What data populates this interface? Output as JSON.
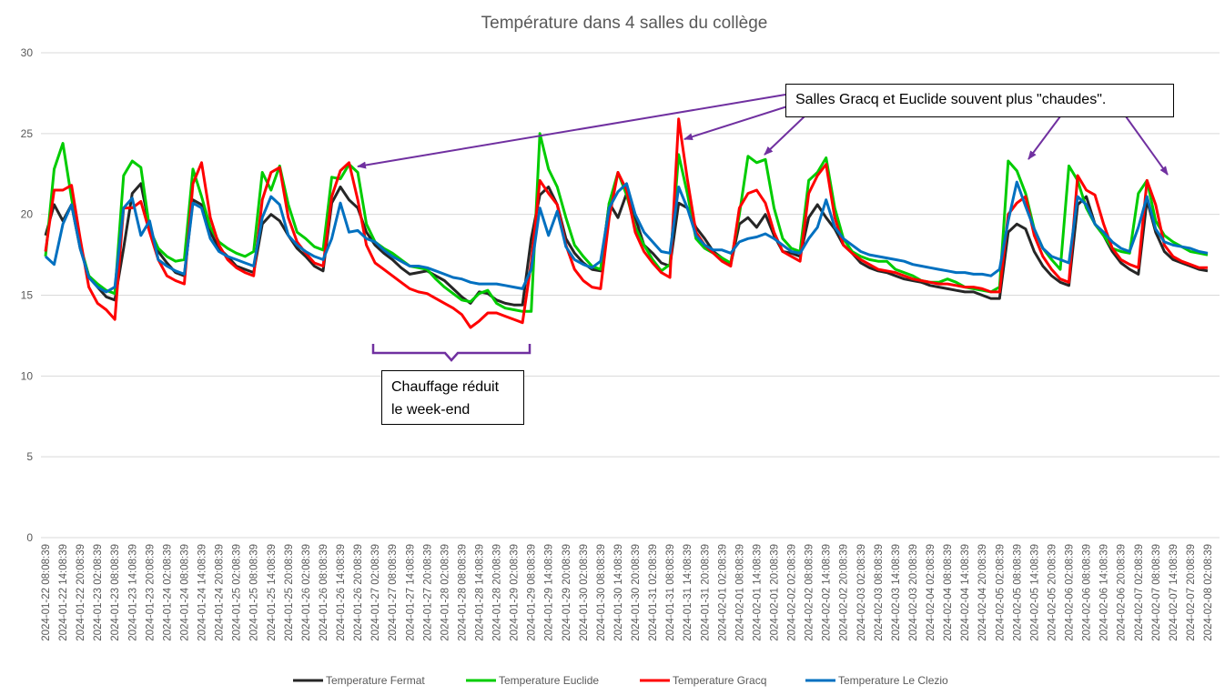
{
  "chart_data": {
    "type": "line",
    "title": "Température dans 4 salles du collège",
    "xlabel": "",
    "ylabel": "",
    "ylim": [
      0,
      30
    ],
    "yticks": [
      "0",
      "5",
      "10",
      "15",
      "20",
      "25",
      "30"
    ],
    "grid": true,
    "legend_position": "bottom",
    "x_start": "2024-01-22 08:08:39",
    "x_step_hours": 3,
    "xtick_labels": [
      "2024-01-22 08:08:39",
      "2024-01-22 14:08:39",
      "2024-01-22 20:08:39",
      "2024-01-23 02:08:39",
      "2024-01-23 08:08:39",
      "2024-01-23 14:08:39",
      "2024-01-23 20:08:39",
      "2024-01-24 02:08:39",
      "2024-01-24 08:08:39",
      "2024-01-24 14:08:39",
      "2024-01-24 20:08:39",
      "2024-01-25 02:08:39",
      "2024-01-25 08:08:39",
      "2024-01-25 14:08:39",
      "2024-01-25 20:08:39",
      "2024-01-26 02:08:39",
      "2024-01-26 08:08:39",
      "2024-01-26 14:08:39",
      "2024-01-26 20:08:39",
      "2024-01-27 02:08:39",
      "2024-01-27 08:08:39",
      "2024-01-27 14:08:39",
      "2024-01-27 20:08:39",
      "2024-01-28 02:08:39",
      "2024-01-28 08:08:39",
      "2024-01-28 14:08:39",
      "2024-01-28 20:08:39",
      "2024-01-29 02:08:39",
      "2024-01-29 08:08:39",
      "2024-01-29 14:08:39",
      "2024-01-29 20:08:39",
      "2024-01-30 02:08:39",
      "2024-01-30 08:08:39",
      "2024-01-30 14:08:39",
      "2024-01-30 20:08:39",
      "2024-01-31 02:08:39",
      "2024-01-31 08:08:39",
      "2024-01-31 14:08:39",
      "2024-01-31 20:08:39",
      "2024-02-01 02:08:39",
      "2024-02-01 08:08:39",
      "2024-02-01 14:08:39",
      "2024-02-01 20:08:39",
      "2024-02-02 02:08:39",
      "2024-02-02 08:08:39",
      "2024-02-02 14:08:39",
      "2024-02-02 20:08:39",
      "2024-02-03 02:08:39",
      "2024-02-03 08:08:39",
      "2024-02-03 14:08:39",
      "2024-02-03 20:08:39",
      "2024-02-04 02:08:39",
      "2024-02-04 08:08:39",
      "2024-02-04 14:08:39",
      "2024-02-04 20:08:39",
      "2024-02-05 02:08:39",
      "2024-02-05 08:08:39",
      "2024-02-05 14:08:39",
      "2024-02-05 20:08:39",
      "2024-02-06 02:08:39",
      "2024-02-06 08:08:39",
      "2024-02-06 14:08:39",
      "2024-02-06 20:08:39",
      "2024-02-07 02:08:39",
      "2024-02-07 08:08:39",
      "2024-02-07 14:08:39",
      "2024-02-07 20:08:39",
      "2024-02-08 02:08:39"
    ],
    "series": [
      {
        "name": "Temperature Fermat",
        "color": "#262626",
        "values": [
          18.7,
          20.6,
          19.6,
          20.6,
          17.9,
          16.2,
          15.5,
          14.9,
          14.7,
          17.9,
          21.3,
          21.9,
          19.2,
          17.7,
          17.0,
          16.4,
          16.2,
          20.9,
          20.6,
          18.9,
          17.9,
          17.4,
          16.8,
          16.6,
          16.4,
          19.4,
          20.0,
          19.6,
          18.7,
          17.9,
          17.4,
          16.8,
          16.5,
          20.7,
          21.7,
          20.9,
          20.4,
          18.9,
          18.1,
          17.6,
          17.2,
          16.7,
          16.3,
          16.4,
          16.5,
          16.2,
          15.9,
          15.4,
          14.9,
          14.5,
          15.2,
          15.1,
          14.7,
          14.5,
          14.4,
          14.4,
          18.5,
          21.2,
          21.7,
          20.6,
          18.5,
          17.6,
          17.0,
          16.6,
          16.5,
          20.7,
          19.8,
          21.3,
          19.8,
          18.1,
          17.6,
          17.0,
          16.8,
          20.7,
          20.4,
          19.2,
          18.5,
          17.7,
          17.3,
          16.9,
          19.4,
          19.8,
          19.2,
          20.0,
          18.7,
          17.7,
          17.6,
          17.4,
          19.8,
          20.6,
          19.8,
          19.1,
          18.1,
          17.6,
          17.0,
          16.7,
          16.5,
          16.4,
          16.2,
          16.0,
          15.9,
          15.8,
          15.6,
          15.5,
          15.4,
          15.3,
          15.2,
          15.2,
          15.0,
          14.8,
          14.8,
          18.9,
          19.4,
          19.1,
          17.7,
          16.8,
          16.2,
          15.8,
          15.6,
          20.6,
          21.1,
          19.4,
          18.7,
          17.7,
          17.0,
          16.6,
          16.3,
          20.9,
          18.9,
          17.7,
          17.2,
          17.0,
          16.8,
          16.6,
          16.5
        ]
      },
      {
        "name": "Temperature Euclide",
        "color": "#00cc00",
        "values": [
          17.4,
          22.8,
          24.4,
          21.0,
          18.1,
          16.2,
          15.7,
          15.3,
          15.1,
          22.4,
          23.3,
          22.9,
          19.1,
          17.9,
          17.4,
          17.1,
          17.2,
          22.8,
          21.1,
          19.2,
          18.3,
          17.9,
          17.6,
          17.4,
          17.7,
          22.6,
          21.5,
          23.0,
          20.6,
          18.9,
          18.5,
          18.0,
          17.8,
          22.3,
          22.2,
          23.1,
          22.6,
          19.4,
          18.3,
          17.9,
          17.6,
          17.2,
          16.8,
          16.7,
          16.6,
          16.0,
          15.5,
          15.1,
          14.7,
          14.6,
          15.1,
          15.3,
          14.5,
          14.2,
          14.1,
          14.0,
          14.0,
          25.0,
          22.8,
          21.7,
          19.8,
          18.1,
          17.4,
          16.8,
          16.6,
          20.7,
          22.6,
          21.2,
          19.2,
          18.1,
          17.2,
          16.5,
          16.9,
          23.7,
          21.3,
          18.5,
          17.9,
          17.6,
          17.3,
          17.0,
          20.0,
          23.6,
          23.2,
          23.4,
          20.4,
          18.5,
          17.9,
          17.7,
          22.1,
          22.6,
          23.5,
          20.4,
          18.5,
          17.7,
          17.4,
          17.2,
          17.1,
          17.1,
          16.6,
          16.4,
          16.2,
          15.9,
          15.8,
          15.8,
          16.0,
          15.8,
          15.5,
          15.4,
          15.3,
          15.2,
          15.5,
          23.3,
          22.7,
          21.3,
          19.1,
          17.9,
          17.2,
          16.6,
          23.0,
          22.1,
          20.4,
          19.4,
          18.7,
          17.9,
          17.7,
          17.6,
          21.3,
          22.1,
          19.6,
          18.7,
          18.3,
          18.0,
          17.7,
          17.6,
          17.5
        ]
      },
      {
        "name": "Temperature Gracq",
        "color": "#ff0000",
        "values": [
          17.7,
          21.5,
          21.5,
          21.8,
          18.5,
          15.5,
          14.5,
          14.1,
          13.5,
          20.4,
          20.4,
          20.8,
          18.9,
          17.2,
          16.2,
          15.9,
          15.7,
          21.9,
          23.2,
          19.8,
          18.1,
          17.2,
          16.7,
          16.4,
          16.2,
          20.9,
          22.6,
          22.9,
          19.8,
          18.3,
          17.6,
          17.0,
          16.8,
          21.1,
          22.7,
          23.2,
          20.9,
          18.1,
          17.0,
          16.6,
          16.2,
          15.8,
          15.4,
          15.2,
          15.1,
          14.8,
          14.5,
          14.2,
          13.8,
          13.0,
          13.4,
          13.9,
          13.9,
          13.7,
          13.5,
          13.3,
          17.0,
          22.1,
          21.3,
          20.6,
          18.1,
          16.6,
          15.9,
          15.5,
          15.4,
          19.8,
          22.6,
          21.5,
          18.9,
          17.7,
          17.0,
          16.4,
          16.1,
          25.9,
          22.2,
          18.9,
          18.1,
          17.6,
          17.1,
          16.8,
          20.4,
          21.3,
          21.5,
          20.7,
          18.9,
          17.7,
          17.4,
          17.1,
          21.3,
          22.4,
          23.1,
          19.8,
          18.1,
          17.6,
          17.2,
          16.9,
          16.6,
          16.5,
          16.4,
          16.2,
          16.0,
          15.9,
          15.8,
          15.7,
          15.7,
          15.6,
          15.5,
          15.5,
          15.4,
          15.2,
          15.2,
          20.0,
          20.7,
          21.1,
          18.7,
          17.4,
          16.6,
          16.0,
          15.8,
          22.4,
          21.5,
          21.2,
          19.4,
          17.9,
          17.2,
          16.9,
          16.7,
          22.1,
          20.6,
          18.1,
          17.4,
          17.1,
          16.9,
          16.7,
          16.7
        ]
      },
      {
        "name": "Temperature Le Clezio",
        "color": "#0070c0",
        "values": [
          17.4,
          16.9,
          19.4,
          20.6,
          17.9,
          16.1,
          15.5,
          15.2,
          15.5,
          20.4,
          21.0,
          18.7,
          19.6,
          17.2,
          16.8,
          16.5,
          16.3,
          20.7,
          20.4,
          18.5,
          17.7,
          17.4,
          17.2,
          17.0,
          16.8,
          19.8,
          21.1,
          20.6,
          18.7,
          18.1,
          17.7,
          17.4,
          17.2,
          18.5,
          20.7,
          18.9,
          19.0,
          18.5,
          18.3,
          17.8,
          17.4,
          17.1,
          16.8,
          16.8,
          16.7,
          16.5,
          16.3,
          16.1,
          16.0,
          15.8,
          15.7,
          15.7,
          15.7,
          15.6,
          15.5,
          15.4,
          16.6,
          20.4,
          18.7,
          20.2,
          18.0,
          17.2,
          16.9,
          16.7,
          17.1,
          20.4,
          21.4,
          21.9,
          20.0,
          18.9,
          18.3,
          17.7,
          17.6,
          21.7,
          20.4,
          18.7,
          18.1,
          17.8,
          17.8,
          17.6,
          18.3,
          18.5,
          18.6,
          18.8,
          18.5,
          18.1,
          17.7,
          17.6,
          18.5,
          19.2,
          20.9,
          19.2,
          18.5,
          18.1,
          17.7,
          17.5,
          17.4,
          17.3,
          17.2,
          17.1,
          16.9,
          16.8,
          16.7,
          16.6,
          16.5,
          16.4,
          16.4,
          16.3,
          16.3,
          16.2,
          16.6,
          19.6,
          22.0,
          20.5,
          19.1,
          17.9,
          17.4,
          17.2,
          17.0,
          21.1,
          20.6,
          19.4,
          18.9,
          18.3,
          17.9,
          17.7,
          19.2,
          21.1,
          19.1,
          18.3,
          18.1,
          18.0,
          17.9,
          17.7,
          17.6
        ]
      }
    ],
    "annotations": [
      {
        "text": "Salles Gracq et Euclide souvent plus \"chaudes\"."
      },
      {
        "text_line1": "Chauffage réduit",
        "text_line2": "le week-end"
      }
    ],
    "annotation_color": "#7030a0"
  }
}
